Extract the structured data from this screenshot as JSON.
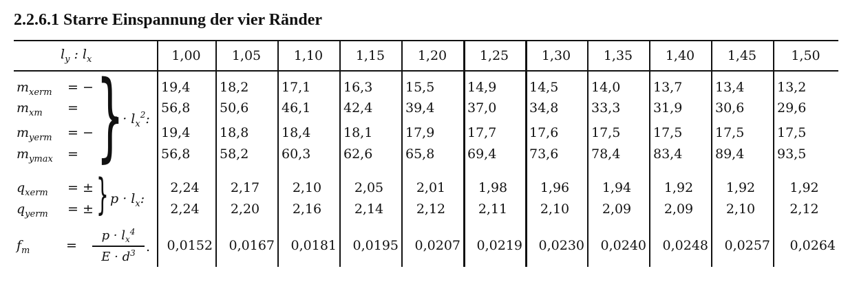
{
  "title": "2.2.6.1 Starre Einspannung der vier Ränder",
  "header": {
    "label": "l_y : l_x",
    "columns": [
      "1,00",
      "1,05",
      "1,10",
      "1,15",
      "1,20",
      "1,25",
      "1,30",
      "1,35",
      "1,40",
      "1,45",
      "1,50"
    ]
  },
  "groups": [
    {
      "factor": "p · l_x²:",
      "rows": [
        {
          "symbol": "m",
          "sub": "xerm",
          "op": "= −",
          "values": [
            "19,4",
            "18,2",
            "17,1",
            "16,3",
            "15,5",
            "14,9",
            "14,5",
            "14,0",
            "13,7",
            "13,4",
            "13,2"
          ]
        },
        {
          "symbol": "m",
          "sub": "xm",
          "op": "=",
          "values": [
            "56,8",
            "50,6",
            "46,1",
            "42,4",
            "39,4",
            "37,0",
            "34,8",
            "33,3",
            "31,9",
            "30,6",
            "29,6"
          ]
        },
        {
          "symbol": "m",
          "sub": "yerm",
          "op": "= −",
          "values": [
            "19,4",
            "18,8",
            "18,4",
            "18,1",
            "17,9",
            "17,7",
            "17,6",
            "17,5",
            "17,5",
            "17,5",
            "17,5"
          ]
        },
        {
          "symbol": "m",
          "sub": "ymax",
          "op": "=",
          "values": [
            "56,8",
            "58,2",
            "60,3",
            "62,6",
            "65,8",
            "69,4",
            "73,6",
            "78,4",
            "83,4",
            "89,4",
            "93,5"
          ]
        }
      ]
    },
    {
      "factor": "p · l_x:",
      "rows": [
        {
          "symbol": "q",
          "sub": "xerm",
          "op": "= ±",
          "values": [
            "2,24",
            "2,17",
            "2,10",
            "2,05",
            "2,01",
            "1,98",
            "1,96",
            "1,94",
            "1,92",
            "1,92",
            "1,92"
          ]
        },
        {
          "symbol": "q",
          "sub": "yerm",
          "op": "= ±",
          "values": [
            "2,24",
            "2,20",
            "2,16",
            "2,14",
            "2,12",
            "2,11",
            "2,10",
            "2,09",
            "2,09",
            "2,10",
            "2,12"
          ]
        }
      ]
    },
    {
      "factor": "",
      "rows": [
        {
          "symbol": "f",
          "sub": "m",
          "op": "=",
          "values": [
            "0,0152",
            "0,0167",
            "0,0181",
            "0,0195",
            "0,0207",
            "0,0219",
            "0,0230",
            "0,0240",
            "0,0248",
            "0,0257",
            "0,0264"
          ]
        }
      ]
    }
  ],
  "deflection_formula": {
    "numerator": "p · l_x⁴",
    "denominator": "E · d³",
    "suffix": "."
  }
}
